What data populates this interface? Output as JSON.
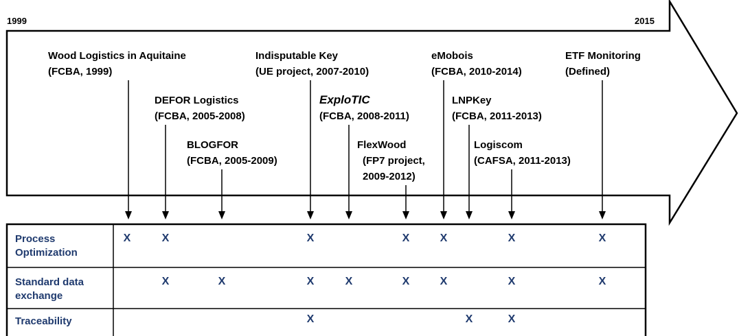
{
  "timeline": {
    "start": "1999",
    "end": "2015"
  },
  "projects": [
    {
      "lines": [
        "Wood Logistics in Aquitaine",
        "(FCBA, 1999)"
      ]
    },
    {
      "lines": [
        "DEFOR Logistics",
        "(FCBA, 2005-2008)"
      ]
    },
    {
      "lines": [
        "BLOGFOR",
        "(FCBA, 2005-2009)"
      ]
    },
    {
      "lines": [
        "Indisputable Key",
        "(UE project, 2007-2010)"
      ]
    },
    {
      "lines": [
        "ExploTIC",
        "(FCBA, 2008-2011)"
      ],
      "italic": true
    },
    {
      "lines": [
        "FlexWood",
        "(FP7 project,",
        "2009-2012)"
      ]
    },
    {
      "lines": [
        "eMobois",
        "(FCBA, 2010-2014)"
      ]
    },
    {
      "lines": [
        "LNPKey",
        "(FCBA, 2011-2013)"
      ]
    },
    {
      "lines": [
        "Logiscom",
        "(CAFSA, 2011-2013)"
      ]
    },
    {
      "lines": [
        "ETF Monitoring",
        "(Defined)"
      ]
    }
  ],
  "table": {
    "rows": [
      {
        "label": [
          "Process",
          "Optimization"
        ],
        "cells": [
          "X",
          "X",
          null,
          "X",
          null,
          "X",
          "X",
          null,
          "X",
          "X"
        ]
      },
      {
        "label": [
          "Standard data",
          "exchange"
        ],
        "cells": [
          null,
          "X",
          "X",
          "X",
          "X",
          "X",
          "X",
          null,
          "X",
          "X"
        ]
      },
      {
        "label": [
          "Traceability"
        ],
        "cells": [
          null,
          null,
          null,
          "X",
          null,
          null,
          null,
          "X",
          "X",
          null
        ]
      }
    ]
  }
}
